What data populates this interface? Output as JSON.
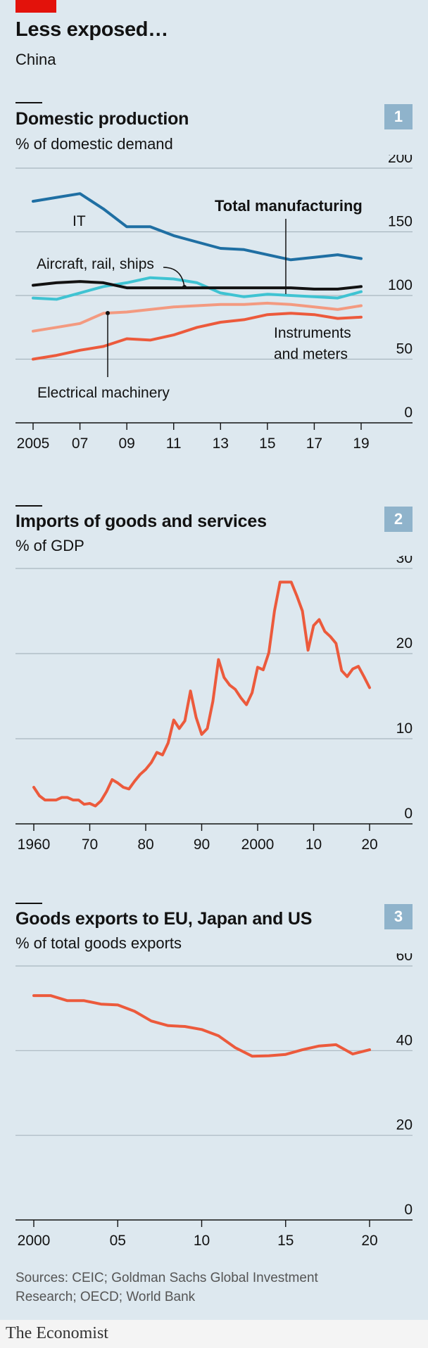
{
  "header": {
    "title": "Less exposed…",
    "subtitle": "China"
  },
  "colors": {
    "brand_red": "#e3120b",
    "badge": "#8fb3cb",
    "background": "#dde8ef",
    "grid": "#a9b6bf",
    "it": "#1f6fa3",
    "aircraft": "#3fc3d2",
    "total": "#121212",
    "instruments": "#f39a80",
    "electrical": "#ec5a3c",
    "imports": "#ec5a3c",
    "exports": "#ec5a3c"
  },
  "panels": [
    {
      "title": "Domestic production",
      "subtitle": "% of domestic demand",
      "badge": "1"
    },
    {
      "title": "Imports of goods and services",
      "subtitle": "% of GDP",
      "badge": "2"
    },
    {
      "title": "Goods exports to EU, Japan and US",
      "subtitle": "% of total goods exports",
      "badge": "3"
    }
  ],
  "source": "Sources: CEIC; Goldman Sachs Global Investment Research; OECD; World Bank",
  "footer": "The Economist",
  "chart_data": [
    {
      "type": "line",
      "title": "Domestic production",
      "ylabel": "% of domestic demand",
      "ylim": [
        0,
        200
      ],
      "yticks": [
        0,
        50,
        100,
        150,
        200
      ],
      "xlim": [
        2005,
        2019
      ],
      "xtick_labels": [
        "2005",
        "07",
        "09",
        "11",
        "13",
        "15",
        "17",
        "19"
      ],
      "grid": true,
      "x": [
        2005,
        2006,
        2007,
        2008,
        2009,
        2010,
        2011,
        2012,
        2013,
        2014,
        2015,
        2016,
        2017,
        2018,
        2019
      ],
      "series": [
        {
          "name": "IT",
          "color": "#1f6fa3",
          "values": [
            174,
            177,
            180,
            168,
            154,
            154,
            147,
            142,
            137,
            136,
            132,
            128,
            130,
            132,
            129
          ]
        },
        {
          "name": "Aircraft, rail, ships",
          "color": "#3fc3d2",
          "values": [
            98,
            97,
            102,
            107,
            110,
            114,
            113,
            110,
            102,
            99,
            101,
            100,
            99,
            98,
            103
          ]
        },
        {
          "name": "Total manufacturing",
          "color": "#121212",
          "values": [
            108,
            110,
            111,
            110,
            106,
            106,
            106,
            106,
            106,
            106,
            106,
            106,
            105,
            105,
            107
          ]
        },
        {
          "name": "Instruments and meters",
          "color": "#f39a80",
          "values": [
            72,
            75,
            78,
            86,
            87,
            89,
            91,
            92,
            93,
            93,
            94,
            93,
            91,
            89,
            92
          ]
        },
        {
          "name": "Electrical machinery",
          "color": "#ec5a3c",
          "values": [
            50,
            53,
            57,
            60,
            66,
            65,
            69,
            75,
            79,
            81,
            85,
            86,
            85,
            82,
            83
          ]
        }
      ],
      "annotations": [
        "IT",
        "Aircraft, rail, ships",
        "Total manufacturing",
        "Instruments and meters",
        "Electrical machinery"
      ]
    },
    {
      "type": "line",
      "title": "Imports of goods and services",
      "ylabel": "% of GDP",
      "ylim": [
        0,
        30
      ],
      "yticks": [
        0,
        10,
        20,
        30
      ],
      "xlim": [
        1960,
        2020
      ],
      "xtick_labels": [
        "1960",
        "70",
        "80",
        "90",
        "2000",
        "10",
        "20"
      ],
      "grid": true,
      "x": [
        1960,
        1961,
        1962,
        1963,
        1964,
        1965,
        1966,
        1967,
        1968,
        1969,
        1970,
        1971,
        1972,
        1973,
        1974,
        1975,
        1976,
        1977,
        1978,
        1979,
        1980,
        1981,
        1982,
        1983,
        1984,
        1985,
        1986,
        1987,
        1988,
        1989,
        1990,
        1991,
        1992,
        1993,
        1994,
        1995,
        1996,
        1997,
        1998,
        1999,
        2000,
        2001,
        2002,
        2003,
        2004,
        2005,
        2006,
        2007,
        2008,
        2009,
        2010,
        2011,
        2012,
        2013,
        2014,
        2015,
        2016,
        2017,
        2018,
        2019,
        2020
      ],
      "series": [
        {
          "name": "",
          "color": "#ec5a3c",
          "values": [
            4.3,
            3.3,
            2.8,
            2.8,
            2.8,
            3.1,
            3.1,
            2.8,
            2.8,
            2.3,
            2.4,
            2.1,
            2.7,
            3.8,
            5.2,
            4.8,
            4.3,
            4.1,
            5.0,
            5.8,
            6.4,
            7.2,
            8.4,
            8.1,
            9.5,
            12.2,
            11.2,
            12.1,
            15.6,
            12.5,
            10.5,
            11.2,
            14.4,
            19.3,
            17.2,
            16.3,
            15.8,
            14.8,
            14.0,
            15.4,
            18.4,
            18.1,
            20.1,
            25.0,
            28.4,
            28.4,
            28.4,
            26.8,
            25.0,
            20.4,
            23.3,
            24.0,
            22.6,
            22.0,
            21.2,
            18.0,
            17.3,
            18.2,
            18.5,
            17.3,
            16.0
          ]
        }
      ]
    },
    {
      "type": "line",
      "title": "Goods exports to EU, Japan and US",
      "ylabel": "% of total goods exports",
      "ylim": [
        0,
        60
      ],
      "yticks": [
        0,
        20,
        40,
        60
      ],
      "xlim": [
        2000,
        2020
      ],
      "xtick_labels": [
        "2000",
        "05",
        "10",
        "15",
        "20"
      ],
      "grid": true,
      "x": [
        2000,
        2001,
        2002,
        2003,
        2004,
        2005,
        2006,
        2007,
        2008,
        2009,
        2010,
        2011,
        2012,
        2013,
        2014,
        2015,
        2016,
        2017,
        2018,
        2019,
        2020
      ],
      "series": [
        {
          "name": "",
          "color": "#ec5a3c",
          "values": [
            53.0,
            53.0,
            51.8,
            51.8,
            51.0,
            50.8,
            49.3,
            47.0,
            45.9,
            45.7,
            45.0,
            43.5,
            40.7,
            38.7,
            38.8,
            39.1,
            40.2,
            41.1,
            41.4,
            39.2,
            40.2
          ]
        }
      ]
    }
  ]
}
